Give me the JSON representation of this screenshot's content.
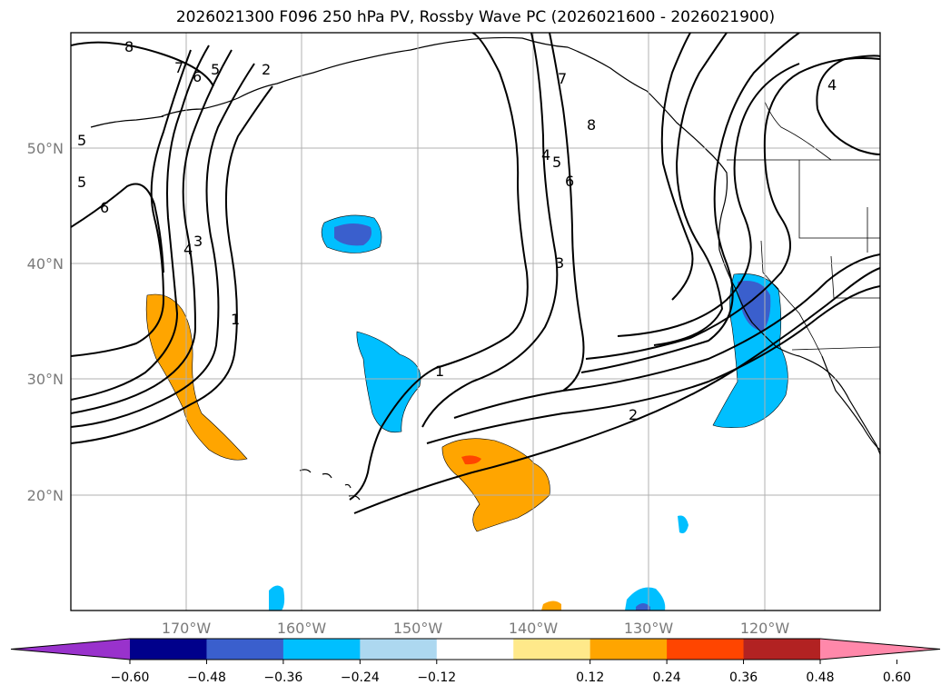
{
  "title": "2026021300 F096 250 hPa PV, Rossby Wave PC (2026021600 - 2026021900)",
  "map": {
    "projection": "PlateCarree",
    "lon_range": [
      -180,
      -110
    ],
    "lat_range": [
      10,
      60
    ],
    "gridlines": true,
    "lat_ticks": [
      "20°N",
      "30°N",
      "40°N",
      "50°N"
    ],
    "lon_ticks": [
      "170°W",
      "160°W",
      "150°W",
      "140°W",
      "130°W",
      "120°W"
    ]
  },
  "contour_labels": [
    "8",
    "7",
    "6",
    "5",
    "2",
    "5",
    "5",
    "6",
    "3",
    "4",
    "1",
    "1",
    "2",
    "3",
    "4",
    "5",
    "6",
    "7",
    "8",
    "4"
  ],
  "colorbar": {
    "ticks": [
      "−0.60",
      "−0.48",
      "−0.36",
      "−0.24",
      "−0.12",
      "0.12",
      "0.24",
      "0.36",
      "0.48",
      "0.60"
    ],
    "colors": [
      "#9932cc",
      "#00008b",
      "#3a5fcd",
      "#00bfff",
      "#add8f0",
      "#ffffff",
      "#ffe98a",
      "#ffa500",
      "#ff4500",
      "#b22222",
      "#ff88aa"
    ],
    "extend": "both"
  }
}
